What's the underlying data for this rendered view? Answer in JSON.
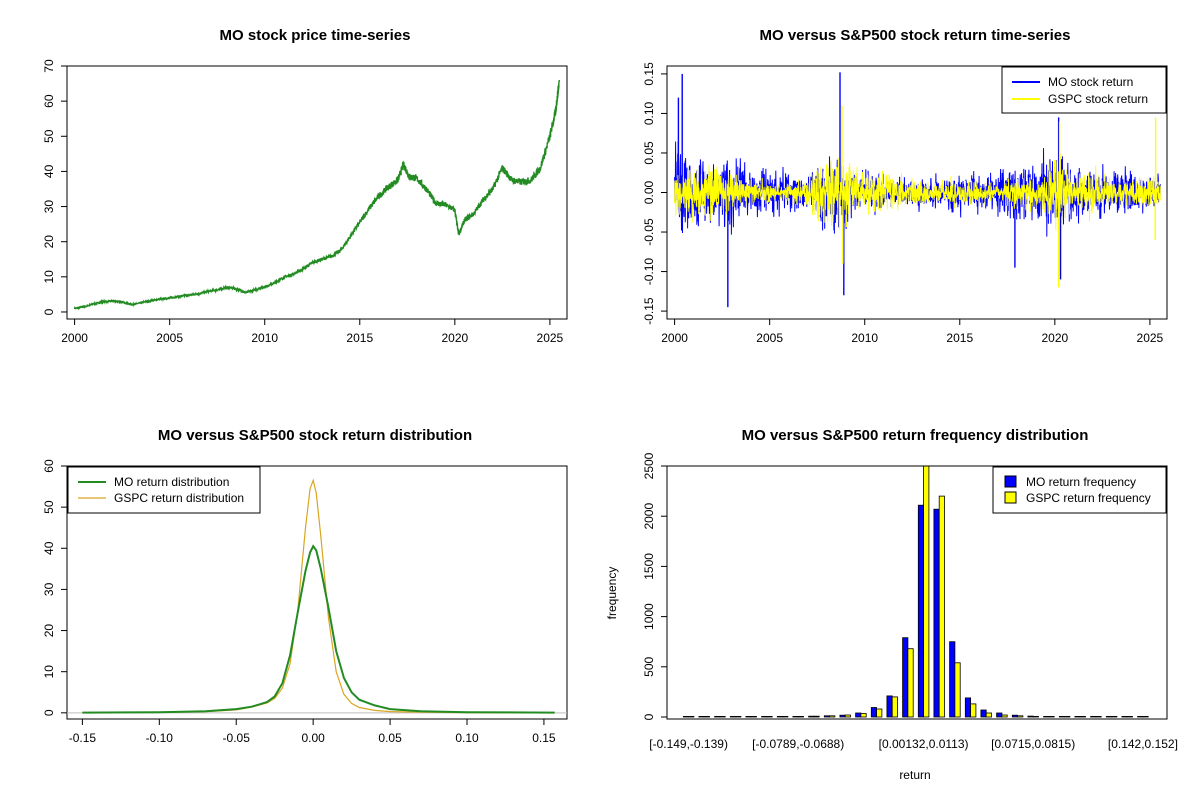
{
  "colors": {
    "mo_price": "#228B22",
    "mo_return": "#0000FF",
    "gspc_return": "#FFFF00",
    "mo_density": "#228B22",
    "gspc_density": "#DAA520",
    "mo_hist": "#0000FF",
    "gspc_hist": "#FFFF00"
  },
  "chart_data": [
    {
      "type": "line",
      "title": "MO stock price time-series",
      "xlabel": "",
      "ylabel": "",
      "xlim": [
        1999.6,
        2025.9
      ],
      "ylim": [
        -2,
        70
      ],
      "xticks": [
        "2000",
        "2005",
        "2010",
        "2015",
        "2020",
        "2025"
      ],
      "yticks": [
        "0",
        "10",
        "20",
        "30",
        "40",
        "50",
        "60",
        "70"
      ],
      "series": [
        {
          "x": [
            2000.0,
            2000.5,
            2001.0,
            2001.5,
            2002.0,
            2002.5,
            2003.0,
            2003.5,
            2004.0,
            2004.5,
            2005.0,
            2005.5,
            2006.0,
            2006.5,
            2007.0,
            2007.5,
            2008.0,
            2008.5,
            2009.0,
            2009.5,
            2010.0,
            2010.5,
            2011.0,
            2011.5,
            2012.0,
            2012.5,
            2013.0,
            2013.5,
            2014.0,
            2014.5,
            2015.0,
            2015.5,
            2016.0,
            2016.5,
            2017.0,
            2017.3,
            2017.6,
            2018.0,
            2018.5,
            2019.0,
            2019.5,
            2020.0,
            2020.2,
            2020.5,
            2021.0,
            2021.5,
            2022.0,
            2022.5,
            2023.0,
            2023.5,
            2024.0,
            2024.5,
            2025.0,
            2025.3,
            2025.5
          ],
          "y": [
            1.0,
            1.5,
            2.3,
            2.9,
            3.1,
            2.8,
            2.1,
            2.6,
            3.2,
            3.6,
            4.0,
            4.4,
            4.8,
            5.2,
            5.8,
            6.3,
            7.0,
            6.6,
            5.5,
            6.3,
            7.2,
            8.2,
            9.8,
            10.8,
            12.2,
            14.0,
            15.0,
            15.8,
            17.5,
            21.5,
            25.5,
            29.5,
            33.0,
            35.5,
            37.5,
            42.0,
            38.5,
            38.0,
            35.0,
            31.0,
            30.5,
            29.0,
            22.0,
            26.0,
            28.0,
            32.0,
            35.0,
            41.0,
            37.5,
            37.0,
            37.5,
            41.0,
            50.0,
            57.0,
            66.0
          ]
        }
      ]
    },
    {
      "type": "line",
      "title": "MO versus S&P500 stock return time-series",
      "xlabel": "",
      "ylabel": "",
      "xlim": [
        1999.6,
        2025.9
      ],
      "ylim": [
        -0.16,
        0.16
      ],
      "xticks": [
        "2000",
        "2005",
        "2010",
        "2015",
        "2020",
        "2025"
      ],
      "yticks": [
        "-0.15",
        "-0.10",
        "-0.05",
        "0.00",
        "0.05",
        "0.10",
        "0.15"
      ],
      "legend_position": "top-right",
      "series": [
        {
          "name": "MO stock return",
          "volatility_by_year": {
            "x": [
              2000,
              2001,
              2002,
              2003,
              2004,
              2005,
              2006,
              2007,
              2008,
              2009,
              2010,
              2011,
              2012,
              2013,
              2014,
              2015,
              2016,
              2017,
              2018,
              2019,
              2020,
              2021,
              2022,
              2023,
              2024,
              2025.5
            ],
            "sd": [
              0.032,
              0.02,
              0.02,
              0.022,
              0.017,
              0.013,
              0.011,
              0.012,
              0.022,
              0.018,
              0.012,
              0.01,
              0.009,
              0.009,
              0.01,
              0.011,
              0.011,
              0.012,
              0.015,
              0.018,
              0.025,
              0.015,
              0.014,
              0.013,
              0.012,
              0.012
            ]
          },
          "extremes": [
            {
              "x": 2000.2,
              "y": 0.12
            },
            {
              "x": 2000.4,
              "y": 0.15
            },
            {
              "x": 2002.8,
              "y": -0.145
            },
            {
              "x": 2008.7,
              "y": 0.152
            },
            {
              "x": 2008.9,
              "y": -0.13
            },
            {
              "x": 2017.9,
              "y": -0.095
            },
            {
              "x": 2020.2,
              "y": 0.095
            },
            {
              "x": 2020.3,
              "y": -0.11
            }
          ]
        },
        {
          "name": "GSPC stock return",
          "volatility_by_year": {
            "x": [
              2000,
              2001,
              2002,
              2003,
              2004,
              2005,
              2006,
              2007,
              2008,
              2009,
              2010,
              2011,
              2012,
              2013,
              2014,
              2015,
              2016,
              2017,
              2018,
              2019,
              2020,
              2021,
              2022,
              2023,
              2024,
              2025.5
            ],
            "sd": [
              0.014,
              0.014,
              0.016,
              0.011,
              0.007,
              0.006,
              0.006,
              0.01,
              0.026,
              0.017,
              0.011,
              0.014,
              0.008,
              0.007,
              0.007,
              0.009,
              0.008,
              0.004,
              0.011,
              0.008,
              0.022,
              0.008,
              0.015,
              0.008,
              0.008,
              0.012
            ]
          },
          "extremes": [
            {
              "x": 2008.8,
              "y": 0.11
            },
            {
              "x": 2008.85,
              "y": -0.09
            },
            {
              "x": 2020.2,
              "y": -0.12
            },
            {
              "x": 2020.25,
              "y": 0.09
            },
            {
              "x": 2025.3,
              "y": 0.095
            },
            {
              "x": 2025.28,
              "y": -0.06
            }
          ]
        }
      ]
    },
    {
      "type": "line",
      "title": "MO versus S&P500 stock return distribution",
      "xlabel": "",
      "ylabel": "",
      "xlim": [
        -0.16,
        0.165
      ],
      "ylim": [
        -1.5,
        60
      ],
      "xticks": [
        "-0.15",
        "-0.10",
        "-0.05",
        "0.00",
        "0.05",
        "0.10",
        "0.15"
      ],
      "yticks": [
        "0",
        "10",
        "20",
        "30",
        "40",
        "50",
        "60"
      ],
      "legend_position": "top-left",
      "series": [
        {
          "name": "MO return distribution",
          "x": [
            -0.15,
            -0.1,
            -0.07,
            -0.05,
            -0.04,
            -0.03,
            -0.025,
            -0.02,
            -0.015,
            -0.01,
            -0.005,
            -0.002,
            0.0,
            0.002,
            0.005,
            0.01,
            0.015,
            0.02,
            0.025,
            0.03,
            0.04,
            0.05,
            0.07,
            0.1,
            0.157
          ],
          "y": [
            0.05,
            0.15,
            0.4,
            0.9,
            1.5,
            2.6,
            4.0,
            7.2,
            14.0,
            24.5,
            34.5,
            39.0,
            40.5,
            39.5,
            35.0,
            25.5,
            15.0,
            8.5,
            5.0,
            3.2,
            1.8,
            0.9,
            0.4,
            0.15,
            0.05
          ]
        },
        {
          "name": "GSPC return distribution",
          "x": [
            -0.15,
            -0.1,
            -0.07,
            -0.05,
            -0.04,
            -0.03,
            -0.025,
            -0.02,
            -0.015,
            -0.01,
            -0.005,
            -0.002,
            0.0,
            0.002,
            0.005,
            0.01,
            0.015,
            0.02,
            0.025,
            0.03,
            0.04,
            0.05,
            0.07,
            0.1,
            0.157
          ],
          "y": [
            0.02,
            0.1,
            0.3,
            0.7,
            1.4,
            2.4,
            3.5,
            6.0,
            12.0,
            25.0,
            45.0,
            54.5,
            56.5,
            53.5,
            43.0,
            23.0,
            10.0,
            4.5,
            2.3,
            1.3,
            0.6,
            0.3,
            0.15,
            0.05,
            0.01
          ]
        }
      ]
    },
    {
      "type": "bar",
      "title": "MO versus S&P500 return frequency distribution",
      "xlabel": "return",
      "ylabel": "frequency",
      "ylim": [
        0,
        2500
      ],
      "yticks": [
        "0",
        "500",
        "1000",
        "1500",
        "2000",
        "2500"
      ],
      "legend_position": "top-right",
      "xtick_labels": [
        "[-0.149,-0.139)",
        "[-0.0789,-0.0688)",
        "[0.00132,0.0113)",
        "[0.0715,0.0815)",
        "[0.142,0.152]"
      ],
      "categories_count": 30,
      "xtick_category_index": [
        0,
        7,
        15,
        22,
        29
      ],
      "series": [
        {
          "name": "MO return frequency",
          "values": [
            1,
            1,
            1,
            2,
            1,
            2,
            3,
            5,
            8,
            12,
            18,
            40,
            95,
            210,
            790,
            2110,
            2070,
            750,
            190,
            70,
            40,
            18,
            9,
            6,
            4,
            3,
            2,
            2,
            1,
            1
          ]
        },
        {
          "name": "GSPC return frequency",
          "values": [
            0,
            0,
            0,
            1,
            1,
            2,
            4,
            6,
            8,
            12,
            20,
            35,
            80,
            200,
            680,
            2500,
            2200,
            540,
            130,
            40,
            20,
            12,
            6,
            4,
            3,
            2,
            2,
            1,
            1,
            0
          ]
        }
      ]
    }
  ]
}
